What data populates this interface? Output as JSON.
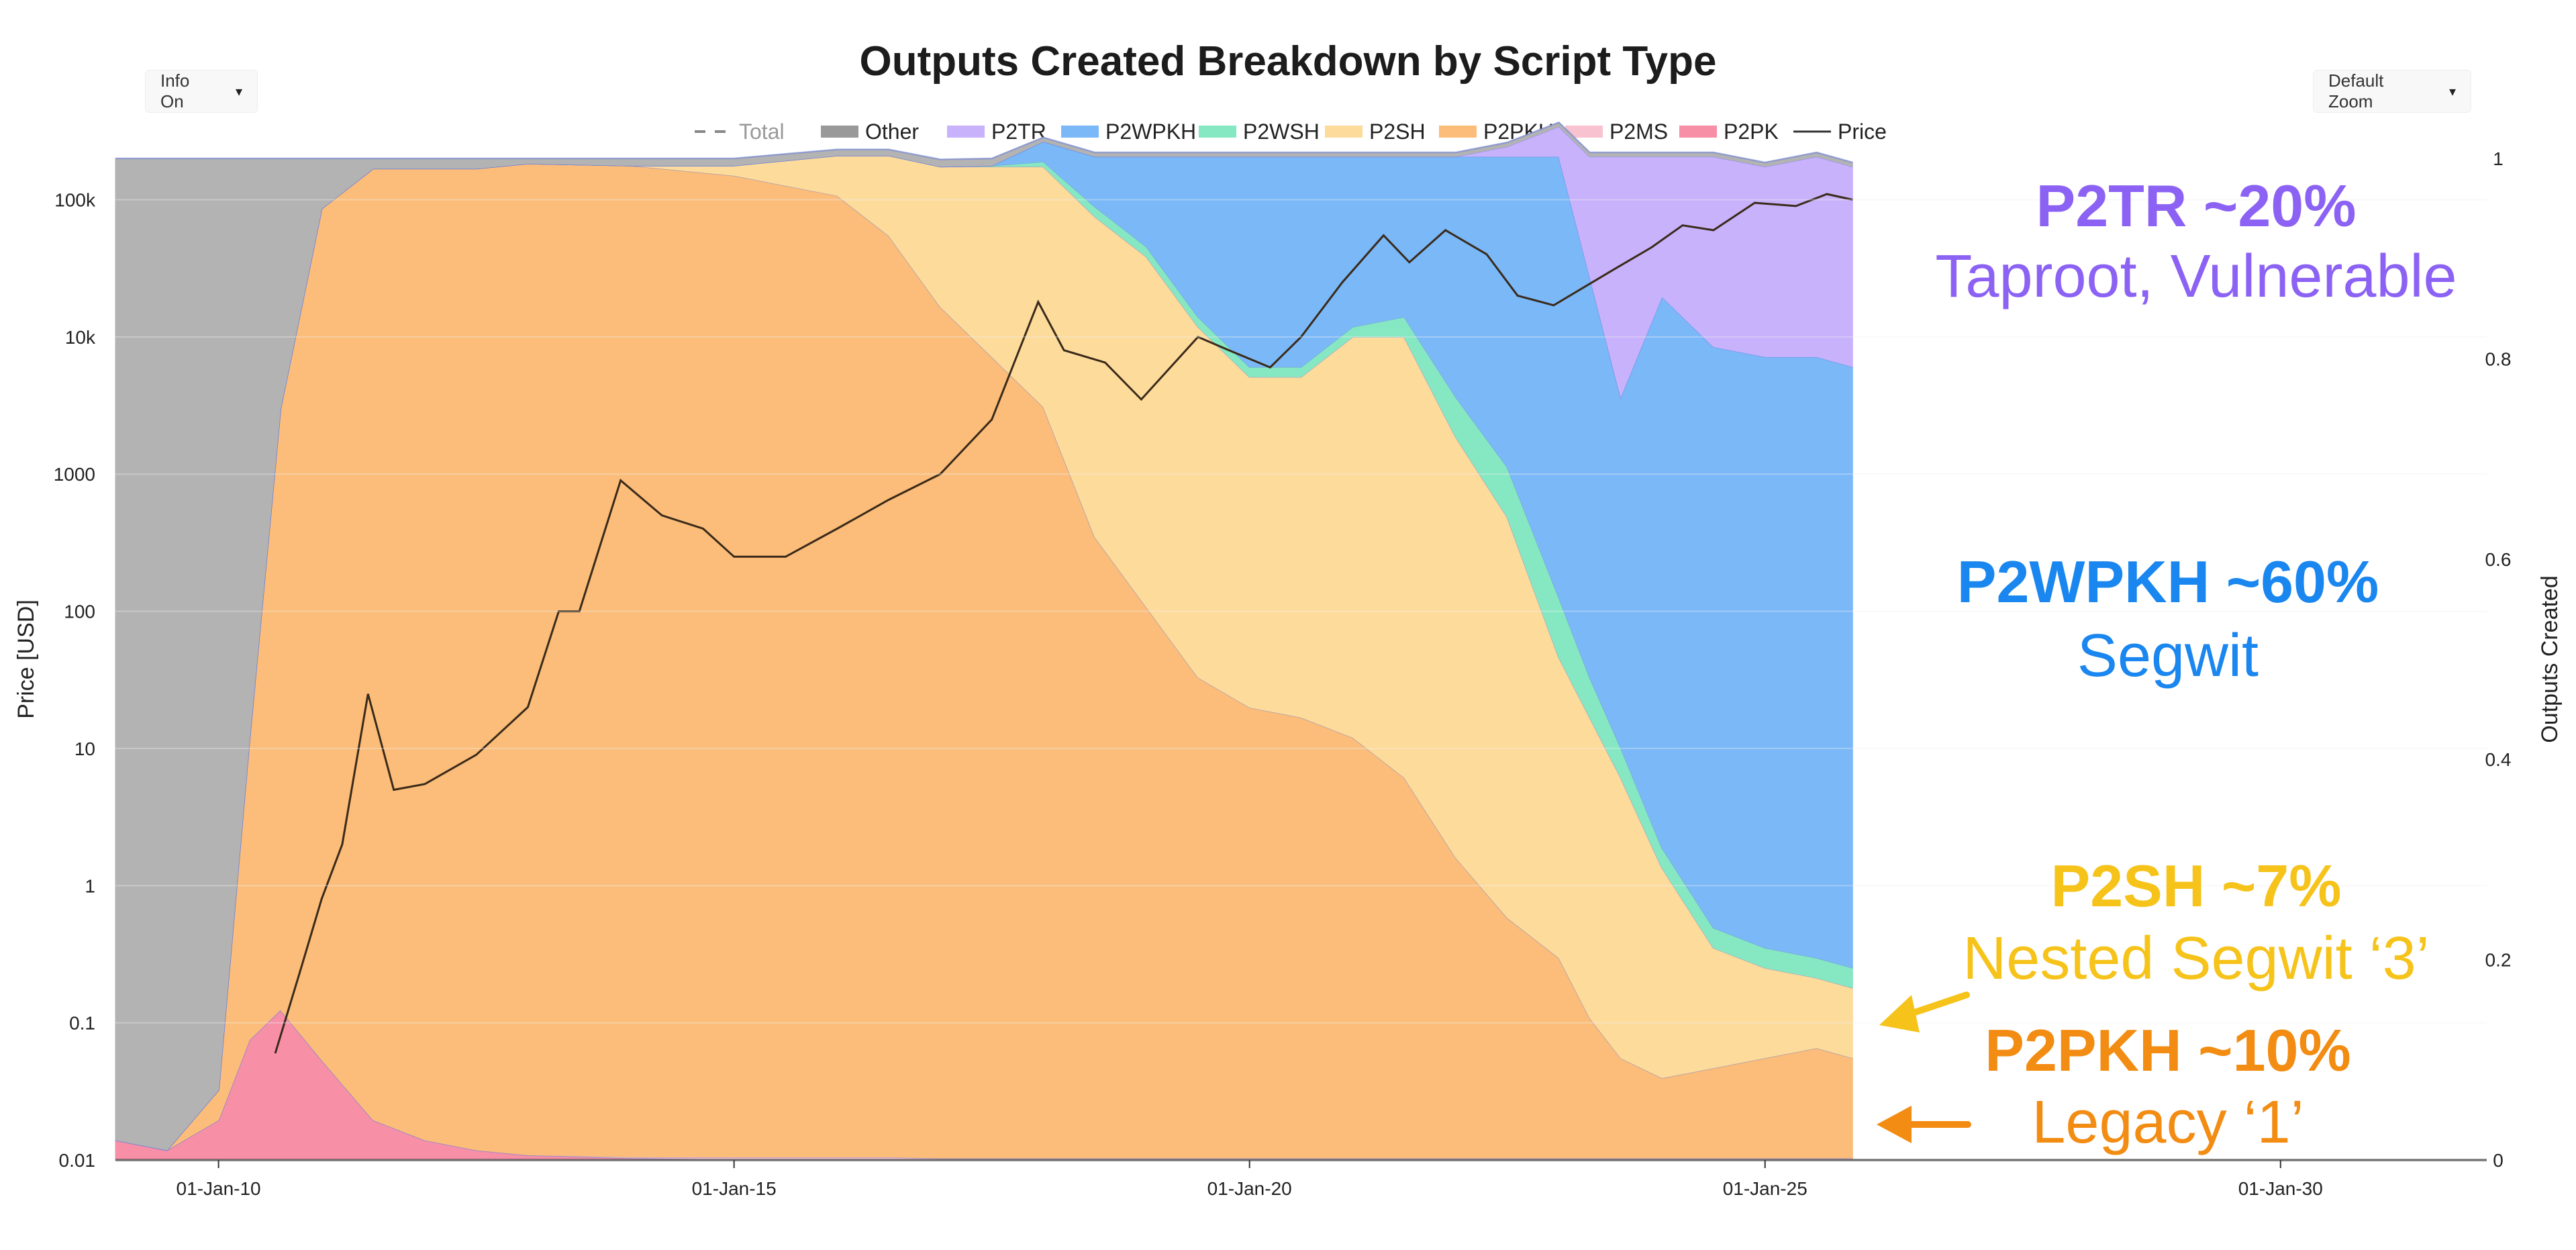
{
  "controls": {
    "info_label": "Info On",
    "zoom_label": "Default Zoom",
    "caret": "▾"
  },
  "chart_data": {
    "type": "area",
    "title": "Outputs Created Breakdown by Script Type",
    "ylabel_left": "Price [USD]",
    "ylabel_right": "Outputs Created",
    "left_axis": {
      "scale": "log",
      "range": [
        0.01,
        200000
      ],
      "tick_labels": [
        "100k",
        "10k",
        "1000",
        "100",
        "10",
        "1",
        "0.1",
        "0.01"
      ],
      "tick_values": [
        100000,
        10000,
        1000,
        100,
        10,
        1,
        0.1,
        0.01
      ]
    },
    "right_axis": {
      "range": [
        0,
        1
      ],
      "tick_labels": [
        "1",
        "0.8",
        "0.6",
        "0.4",
        "0.2",
        "0"
      ],
      "tick_values": [
        1,
        0.8,
        0.6,
        0.4,
        0.2,
        0
      ]
    },
    "x_axis": {
      "range": [
        2009.0,
        2032.0
      ],
      "tick_labels": [
        "01-Jan-10",
        "01-Jan-15",
        "01-Jan-20",
        "01-Jan-25",
        "01-Jan-30"
      ],
      "tick_values": [
        2010,
        2015,
        2020,
        2025,
        2030
      ]
    },
    "legend": [
      {
        "name": "Total",
        "color": "#888888",
        "style": "dashed",
        "muted": true
      },
      {
        "name": "Other",
        "color": "#999999",
        "style": "bar"
      },
      {
        "name": "P2TR",
        "color": "#c8b2fb",
        "style": "bar"
      },
      {
        "name": "P2WPKH",
        "color": "#7ab8f8",
        "style": "bar"
      },
      {
        "name": "P2WSH",
        "color": "#86e8c3",
        "style": "bar"
      },
      {
        "name": "P2SH",
        "color": "#fddb9b",
        "style": "bar"
      },
      {
        "name": "P2PKH",
        "color": "#fbbd79",
        "style": "bar"
      },
      {
        "name": "P2MS",
        "color": "#f8c2d0",
        "style": "bar"
      },
      {
        "name": "P2PK",
        "color": "#f78fa7",
        "style": "bar"
      },
      {
        "name": "Price",
        "color": "#333333",
        "style": "line"
      }
    ],
    "x": [
      2009.0,
      2009.5,
      2010.0,
      2010.3,
      2010.6,
      2011.0,
      2011.5,
      2012.0,
      2012.5,
      2013.0,
      2014.0,
      2015.0,
      2016.0,
      2016.5,
      2017.0,
      2017.5,
      2018.0,
      2018.5,
      2019.0,
      2019.5,
      2020.0,
      2020.5,
      2021.0,
      2021.5,
      2022.0,
      2022.5,
      2023.0,
      2023.3,
      2023.6,
      2024.0,
      2024.5,
      2025.0,
      2025.5,
      2025.85
    ],
    "series": [
      {
        "name": "P2PK",
        "color": "#f78fa7",
        "values": [
          0.02,
          0.01,
          0.04,
          0.12,
          0.15,
          0.1,
          0.04,
          0.02,
          0.01,
          0.005,
          0.002,
          0.001,
          0.001,
          0.001,
          0.001,
          0.001,
          0.001,
          0.001,
          0.001,
          0.001,
          0.001,
          0.001,
          0.001,
          0.001,
          0.001,
          0.001,
          0.001,
          0.001,
          0.001,
          0.001,
          0.001,
          0.001,
          0.001,
          0.001
        ]
      },
      {
        "name": "P2MS",
        "color": "#f8c2d0",
        "values": [
          0,
          0,
          0,
          0,
          0,
          0,
          0,
          0,
          0,
          0,
          0.001,
          0.002,
          0.002,
          0.002,
          0.001,
          0.001,
          0.001,
          0.001,
          0.001,
          0.001,
          0.001,
          0.001,
          0.001,
          0.001,
          0.001,
          0.001,
          0.001,
          0.001,
          0.001,
          0.001,
          0.001,
          0.001,
          0.001,
          0.001
        ]
      },
      {
        "name": "P2PKH",
        "color": "#fbbd79",
        "values": [
          0,
          0,
          0.03,
          0.3,
          0.6,
          0.85,
          0.95,
          0.97,
          0.98,
          0.99,
          0.99,
          0.98,
          0.96,
          0.92,
          0.85,
          0.8,
          0.75,
          0.62,
          0.55,
          0.48,
          0.45,
          0.44,
          0.42,
          0.38,
          0.3,
          0.24,
          0.2,
          0.14,
          0.1,
          0.08,
          0.09,
          0.1,
          0.11,
          0.1
        ]
      },
      {
        "name": "P2SH",
        "color": "#fddb9b",
        "values": [
          0,
          0,
          0,
          0,
          0,
          0,
          0,
          0,
          0,
          0,
          0,
          0.01,
          0.04,
          0.08,
          0.14,
          0.19,
          0.24,
          0.32,
          0.35,
          0.35,
          0.33,
          0.34,
          0.4,
          0.44,
          0.42,
          0.4,
          0.3,
          0.3,
          0.28,
          0.21,
          0.12,
          0.09,
          0.07,
          0.07
        ]
      },
      {
        "name": "P2WSH",
        "color": "#86e8c3",
        "values": [
          0,
          0,
          0,
          0,
          0,
          0,
          0,
          0,
          0,
          0,
          0,
          0,
          0,
          0,
          0,
          0.001,
          0.005,
          0.01,
          0.01,
          0.01,
          0.01,
          0.01,
          0.01,
          0.02,
          0.04,
          0.05,
          0.06,
          0.04,
          0.03,
          0.02,
          0.02,
          0.02,
          0.02,
          0.02
        ]
      },
      {
        "name": "P2WPKH",
        "color": "#7ab8f8",
        "values": [
          0,
          0,
          0,
          0,
          0,
          0,
          0,
          0,
          0,
          0,
          0,
          0,
          0,
          0,
          0,
          0,
          0.02,
          0.05,
          0.09,
          0.16,
          0.21,
          0.21,
          0.17,
          0.16,
          0.24,
          0.31,
          0.44,
          0.4,
          0.35,
          0.55,
          0.58,
          0.59,
          0.6,
          0.6
        ]
      },
      {
        "name": "P2TR",
        "color": "#c8b2fb",
        "values": [
          0,
          0,
          0,
          0,
          0,
          0,
          0,
          0,
          0,
          0,
          0,
          0,
          0,
          0,
          0,
          0,
          0,
          0,
          0,
          0,
          0,
          0,
          0,
          0,
          0,
          0.01,
          0.03,
          0.12,
          0.24,
          0.14,
          0.19,
          0.19,
          0.2,
          0.2
        ]
      },
      {
        "name": "Other",
        "color": "#b3b3b3",
        "values": [
          0.98,
          0.99,
          0.93,
          0.58,
          0.25,
          0.05,
          0.01,
          0.01,
          0.01,
          0.005,
          0.007,
          0.007,
          0.006,
          0.006,
          0.007,
          0.007,
          0.004,
          0.004,
          0.004,
          0.004,
          0.004,
          0.004,
          0.004,
          0.004,
          0.004,
          0.004,
          0.004,
          0.004,
          0.004,
          0.004,
          0.004,
          0.004,
          0.004,
          0.004
        ]
      }
    ],
    "price": {
      "x": [
        2010.55,
        2010.8,
        2011.0,
        2011.2,
        2011.45,
        2011.7,
        2012.0,
        2012.5,
        2013.0,
        2013.3,
        2013.5,
        2013.9,
        2014.3,
        2014.7,
        2015.0,
        2015.5,
        2016.0,
        2016.5,
        2017.0,
        2017.5,
        2017.95,
        2018.2,
        2018.6,
        2018.95,
        2019.5,
        2019.8,
        2020.2,
        2020.5,
        2020.9,
        2021.3,
        2021.55,
        2021.9,
        2022.3,
        2022.6,
        2022.95,
        2023.5,
        2023.9,
        2024.2,
        2024.5,
        2024.9,
        2025.3,
        2025.6,
        2025.85
      ],
      "values": [
        0.06,
        0.25,
        0.8,
        2,
        25,
        5,
        5.5,
        9,
        20,
        100,
        100,
        900,
        500,
        400,
        250,
        250,
        400,
        650,
        1000,
        2500,
        18000,
        8000,
        6500,
        3500,
        10000,
        8000,
        6000,
        10000,
        25000,
        55000,
        35000,
        60000,
        40000,
        20000,
        17000,
        30000,
        45000,
        65000,
        60000,
        95000,
        90000,
        110000,
        100000
      ]
    },
    "annotations": [
      {
        "title": "P2TR ~20%",
        "subtitle": "Taproot, Vulnerable",
        "color": "#8c62f4"
      },
      {
        "title": "P2WPKH ~60%",
        "subtitle": "Segwit",
        "color": "#1a86ef"
      },
      {
        "title": "P2SH ~7%",
        "subtitle": "Nested Segwit ‘3’",
        "color": "#f6c31a"
      },
      {
        "title": "P2PKH ~10%",
        "subtitle": "Legacy ‘1’",
        "color": "#f28c12"
      }
    ]
  }
}
